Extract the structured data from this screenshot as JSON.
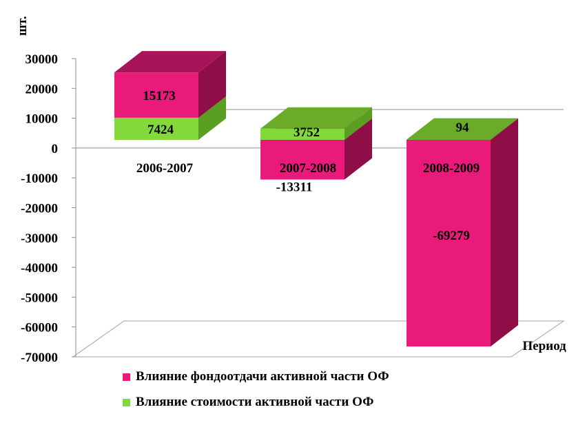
{
  "chart_data": {
    "type": "bar",
    "stacked": true,
    "three_d": true,
    "ylabel": "шт.",
    "xlabel": "Период",
    "ylim": [
      -70000,
      30000
    ],
    "yticks": [
      "30000",
      "20000",
      "10000",
      "0",
      "-10000",
      "-20000",
      "-30000",
      "-40000",
      "-50000",
      "-60000",
      "-70000"
    ],
    "categories": [
      "2006-2007",
      "2007-2008",
      "2008-2009"
    ],
    "series": [
      {
        "name": "Влияние стоимости активной части ОФ",
        "values": [
          7424,
          3752,
          94
        ],
        "labels": [
          "7424",
          "3752",
          "94"
        ],
        "color": "#84d93a",
        "side_color": "#5a9e22",
        "top_color": "#6aac2a"
      },
      {
        "name": "Влияние фондоотдачи активной части ОФ",
        "values": [
          15173,
          -13311,
          -69279
        ],
        "labels": [
          "15173",
          "-13311",
          "-69279"
        ],
        "color": "#ea1a7a",
        "side_color": "#8f0e48",
        "top_color": "#a8145a"
      }
    ],
    "legend": {
      "placement": "bottom",
      "items": [
        {
          "label": "Влияние фондоотдачи активной части ОФ",
          "color": "#ea1a7a"
        },
        {
          "label": "Влияние стоимости активной части ОФ",
          "color": "#84d93a"
        }
      ]
    },
    "grid": false
  }
}
